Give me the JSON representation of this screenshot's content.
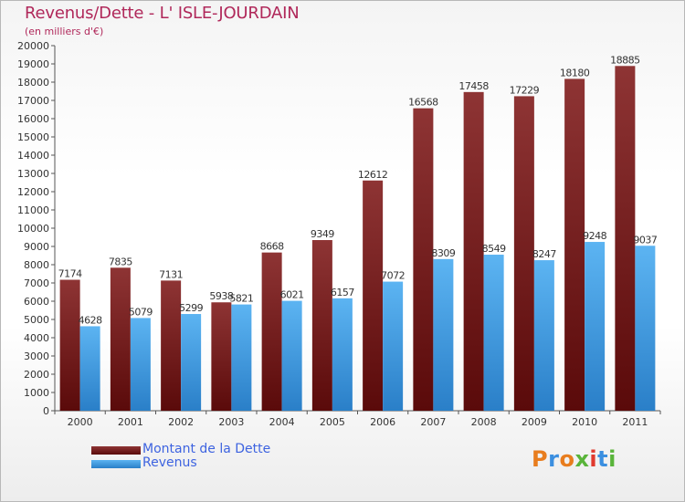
{
  "chart_data": {
    "type": "bar",
    "title": "Revenus/Dette - L' ISLE-JOURDAIN",
    "subtitle": "(en milliers d'€)",
    "categories": [
      "2000",
      "2001",
      "2002",
      "2003",
      "2004",
      "2005",
      "2006",
      "2007",
      "2008",
      "2009",
      "2010",
      "2011"
    ],
    "series": [
      {
        "name": "Montant de la Dette",
        "color": "#7a1a1a",
        "values": [
          7174,
          7835,
          7131,
          5938,
          8668,
          9349,
          12612,
          16568,
          17458,
          17229,
          18180,
          18885
        ]
      },
      {
        "name": "Revenus",
        "color": "#3f9be6",
        "values": [
          4628,
          5079,
          5299,
          5821,
          6021,
          6157,
          7072,
          8309,
          8549,
          8247,
          9248,
          9037
        ]
      }
    ],
    "yticks": [
      "0",
      "1000",
      "2000",
      "3000",
      "4000",
      "5000",
      "6000",
      "7000",
      "8000",
      "9000",
      "10000",
      "11000",
      "12000",
      "13000",
      "14000",
      "15000",
      "16000",
      "17000",
      "18000",
      "19000",
      "20000"
    ],
    "ylim": [
      0,
      20000
    ],
    "grid": false,
    "legend": "bottom-left"
  },
  "logo": {
    "text": "Proxiti",
    "colors": [
      "#e87d1e",
      "#3b8fe0",
      "#e87d1e",
      "#59b43a",
      "#e03a2e",
      "#3b8fe0",
      "#59b43a"
    ]
  }
}
